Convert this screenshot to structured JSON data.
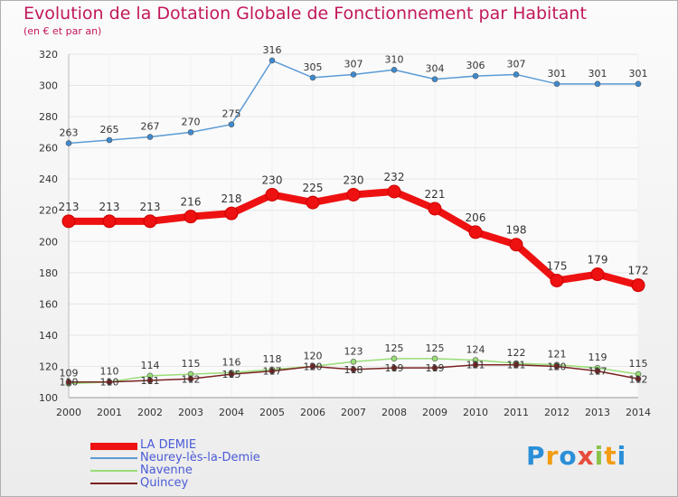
{
  "header": {
    "title": "Evolution de la Dotation Globale de Fonctionnement par Habitant",
    "subtitle": "(en € et par an)"
  },
  "brand": {
    "text": "Proxiti"
  },
  "colors": {
    "title": "#c2185b",
    "axis_text": "#333333",
    "grid": "#e6e6e6",
    "legend_text": "#4a5ad6"
  },
  "chart_data": {
    "type": "line",
    "title": "Evolution de la Dotation Globale de Fonctionnement par Habitant",
    "subtitle": "(en € et par an)",
    "x": [
      "2000",
      "2001",
      "2002",
      "2003",
      "2004",
      "2005",
      "2006",
      "2007",
      "2008",
      "2009",
      "2010",
      "2011",
      "2012",
      "2013",
      "2014"
    ],
    "ylim": [
      100,
      320
    ],
    "yticks": [
      100,
      120,
      140,
      160,
      180,
      200,
      220,
      240,
      260,
      280,
      300,
      320
    ],
    "grid": true,
    "legend_position": "bottom-left",
    "series": [
      {
        "name": "LA DEMIE",
        "color": "#ee1111",
        "width": 8,
        "values": [
          213,
          213,
          213,
          216,
          218,
          230,
          225,
          230,
          232,
          221,
          206,
          198,
          175,
          179,
          172
        ],
        "labels": [
          "213",
          "213",
          "213",
          "216",
          "218",
          "230",
          "225",
          "230",
          "232",
          "221",
          "206",
          "198",
          "175",
          "179",
          "172"
        ]
      },
      {
        "name": "Neurey-lès-la-Demie",
        "color": "#5b9bd5",
        "width": 1.5,
        "values": [
          263,
          265,
          267,
          270,
          275,
          316,
          305,
          307,
          310,
          304,
          306,
          307,
          301,
          301,
          301
        ],
        "labels": [
          "263",
          "265",
          "267",
          "270",
          "275",
          "316",
          "305",
          "307",
          "310",
          "304",
          "306",
          "307",
          "301",
          "301",
          "301"
        ]
      },
      {
        "name": "Navenne",
        "color": "#99dd77",
        "width": 1.5,
        "values": [
          109,
          110,
          114,
          115,
          116,
          118,
          120,
          123,
          125,
          125,
          124,
          122,
          121,
          119,
          115
        ],
        "labels": [
          "109",
          "110",
          "114",
          "115",
          "116",
          "118",
          "120",
          "123",
          "125",
          "125",
          "124",
          "122",
          "121",
          "119",
          "115"
        ]
      },
      {
        "name": "Quincey",
        "color": "#7b2222",
        "width": 1.5,
        "values": [
          110,
          110,
          111,
          112,
          115,
          117,
          120,
          118,
          119,
          119,
          121,
          121,
          120,
          117,
          112
        ],
        "labels": [
          "110",
          "110",
          "111",
          "112",
          "115",
          "117",
          "120",
          "118",
          "119",
          "119",
          "121",
          "121",
          "120",
          "117",
          "112"
        ]
      }
    ]
  }
}
